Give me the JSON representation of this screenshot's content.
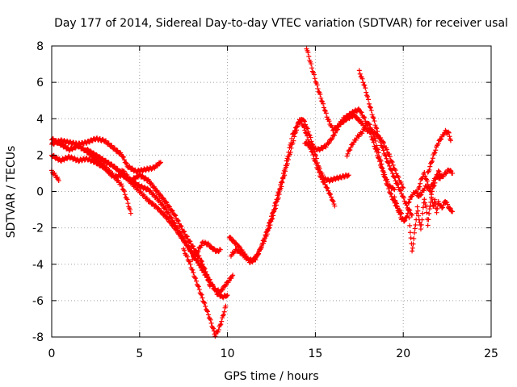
{
  "chart_data": {
    "type": "scatter",
    "title": "Day 177 of 2014, Sidereal Day-to-day VTEC variation (SDTVAR) for receiver usal",
    "xlabel": "GPS time / hours",
    "ylabel": "SDTVAR / TECUs",
    "xlim": [
      0,
      25
    ],
    "ylim": [
      -8,
      8
    ],
    "xticks": [
      "0",
      "5",
      "10",
      "15",
      "20",
      "25"
    ],
    "yticks": [
      "-8",
      "-6",
      "-4",
      "-2",
      "0",
      "2",
      "4",
      "6",
      "8"
    ],
    "grid": true,
    "marker": "+",
    "color": "#ff0000",
    "series": [
      {
        "name": "",
        "points": [
          [
            0.0,
            2.6
          ],
          [
            0.5,
            2.8
          ],
          [
            1.0,
            2.7
          ],
          [
            1.5,
            2.6
          ],
          [
            2.0,
            2.7
          ],
          [
            2.5,
            2.9
          ],
          [
            3.0,
            2.8
          ],
          [
            3.5,
            2.4
          ],
          [
            4.0,
            2.0
          ],
          [
            4.3,
            1.4
          ],
          [
            4.8,
            1.1
          ],
          [
            5.3,
            1.2
          ],
          [
            5.8,
            1.3
          ],
          [
            6.2,
            1.6
          ]
        ]
      },
      {
        "name": "",
        "points": [
          [
            0.0,
            2.9
          ],
          [
            0.5,
            2.6
          ],
          [
            1.0,
            2.3
          ],
          [
            1.5,
            2.5
          ],
          [
            2.0,
            2.2
          ],
          [
            2.5,
            1.8
          ],
          [
            3.0,
            1.4
          ],
          [
            3.5,
            0.9
          ],
          [
            4.0,
            0.3
          ],
          [
            4.3,
            -0.5
          ],
          [
            4.5,
            -1.2
          ]
        ]
      },
      {
        "name": "",
        "points": [
          [
            0.0,
            2.0
          ],
          [
            0.5,
            1.7
          ],
          [
            1.0,
            1.9
          ],
          [
            1.5,
            1.7
          ],
          [
            2.0,
            1.8
          ],
          [
            2.5,
            1.6
          ],
          [
            3.0,
            1.3
          ],
          [
            3.5,
            0.8
          ],
          [
            4.0,
            0.9
          ],
          [
            4.5,
            0.6
          ],
          [
            5.0,
            0.9
          ],
          [
            5.5,
            0.6
          ],
          [
            6.0,
            0.0
          ],
          [
            6.5,
            -0.6
          ],
          [
            7.0,
            -1.3
          ],
          [
            7.5,
            -2.2
          ],
          [
            8.0,
            -3.0
          ],
          [
            8.5,
            -3.8
          ],
          [
            8.8,
            -4.5
          ],
          [
            9.0,
            -5.2
          ]
        ]
      },
      {
        "name": "",
        "points": [
          [
            0.0,
            1.1
          ],
          [
            0.2,
            0.9
          ],
          [
            0.4,
            0.6
          ]
        ]
      },
      {
        "name": "",
        "points": [
          [
            2.0,
            2.3
          ],
          [
            2.5,
            2.0
          ],
          [
            3.0,
            1.7
          ],
          [
            3.5,
            1.4
          ],
          [
            4.0,
            1.0
          ],
          [
            4.5,
            0.5
          ],
          [
            5.0,
            0.0
          ],
          [
            5.5,
            -0.5
          ],
          [
            6.0,
            -0.9
          ],
          [
            6.5,
            -1.4
          ],
          [
            7.0,
            -2.0
          ],
          [
            7.5,
            -2.7
          ],
          [
            8.0,
            -3.4
          ],
          [
            8.5,
            -4.2
          ],
          [
            9.0,
            -5.0
          ],
          [
            9.3,
            -5.4
          ],
          [
            9.6,
            -5.5
          ],
          [
            10.0,
            -5.0
          ],
          [
            10.3,
            -4.6
          ]
        ]
      },
      {
        "name": "",
        "points": [
          [
            4.0,
            1.2
          ],
          [
            4.5,
            0.6
          ],
          [
            5.0,
            0.3
          ],
          [
            5.5,
            0.1
          ],
          [
            6.0,
            -0.4
          ],
          [
            6.5,
            -1.0
          ],
          [
            7.0,
            -1.8
          ],
          [
            7.5,
            -2.6
          ],
          [
            8.0,
            -3.4
          ],
          [
            8.5,
            -4.1
          ],
          [
            9.0,
            -4.9
          ],
          [
            9.4,
            -5.6
          ],
          [
            9.7,
            -5.8
          ],
          [
            10.0,
            -5.7
          ]
        ]
      },
      {
        "name": "",
        "points": [
          [
            7.5,
            -3.2
          ],
          [
            7.8,
            -3.8
          ],
          [
            8.1,
            -4.6
          ],
          [
            8.4,
            -5.4
          ],
          [
            8.7,
            -6.2
          ],
          [
            9.0,
            -7.0
          ],
          [
            9.2,
            -7.6
          ],
          [
            9.3,
            -7.9
          ],
          [
            9.5,
            -7.6
          ],
          [
            9.7,
            -7.0
          ],
          [
            9.9,
            -6.3
          ]
        ]
      },
      {
        "name": "",
        "points": [
          [
            8.0,
            -3.7
          ],
          [
            8.3,
            -3.3
          ],
          [
            8.6,
            -2.8
          ],
          [
            8.9,
            -2.9
          ],
          [
            9.1,
            -3.1
          ],
          [
            9.4,
            -3.3
          ],
          [
            9.6,
            -3.2
          ]
        ]
      },
      {
        "name": "",
        "points": [
          [
            10.2,
            -3.5
          ],
          [
            10.5,
            -3.2
          ],
          [
            10.8,
            -3.4
          ],
          [
            11.1,
            -3.7
          ],
          [
            11.4,
            -3.8
          ],
          [
            11.7,
            -3.5
          ],
          [
            12.0,
            -2.9
          ],
          [
            12.3,
            -2.2
          ],
          [
            12.6,
            -1.3
          ],
          [
            12.9,
            -0.3
          ],
          [
            13.2,
            0.8
          ],
          [
            13.5,
            1.9
          ],
          [
            13.8,
            3.0
          ],
          [
            14.1,
            4.0
          ],
          [
            14.4,
            3.4
          ],
          [
            14.7,
            2.5
          ],
          [
            15.0,
            1.6
          ],
          [
            15.3,
            0.8
          ],
          [
            15.6,
            0.3
          ],
          [
            15.9,
            -0.3
          ],
          [
            16.1,
            -0.8
          ]
        ]
      },
      {
        "name": "",
        "points": [
          [
            10.1,
            -2.5
          ],
          [
            10.4,
            -2.8
          ],
          [
            10.7,
            -3.1
          ],
          [
            11.0,
            -3.5
          ],
          [
            11.3,
            -3.9
          ],
          [
            11.6,
            -3.7
          ],
          [
            11.9,
            -3.1
          ],
          [
            12.2,
            -2.3
          ],
          [
            12.5,
            -1.4
          ],
          [
            12.8,
            -0.4
          ],
          [
            13.1,
            0.6
          ],
          [
            13.4,
            1.8
          ],
          [
            13.7,
            3.1
          ],
          [
            14.0,
            3.7
          ],
          [
            14.3,
            4.0
          ],
          [
            14.6,
            3.3
          ],
          [
            14.9,
            2.4
          ],
          [
            15.2,
            1.3
          ],
          [
            15.5,
            0.7
          ],
          [
            15.8,
            0.6
          ],
          [
            16.1,
            0.7
          ],
          [
            16.5,
            0.8
          ],
          [
            16.9,
            0.9
          ]
        ]
      },
      {
        "name": "",
        "points": [
          [
            14.5,
            7.9
          ],
          [
            14.8,
            6.8
          ],
          [
            15.1,
            5.8
          ],
          [
            15.4,
            4.9
          ],
          [
            15.7,
            4.0
          ],
          [
            16.0,
            3.4
          ],
          [
            16.3,
            3.6
          ],
          [
            16.6,
            4.0
          ],
          [
            16.9,
            4.2
          ],
          [
            17.2,
            4.4
          ],
          [
            17.5,
            4.5
          ],
          [
            17.8,
            4.0
          ],
          [
            18.1,
            3.3
          ],
          [
            18.4,
            2.4
          ],
          [
            18.7,
            1.5
          ],
          [
            19.0,
            0.6
          ],
          [
            19.3,
            -0.2
          ],
          [
            19.6,
            -0.8
          ],
          [
            19.9,
            -1.2
          ]
        ]
      },
      {
        "name": "",
        "points": [
          [
            17.5,
            6.6
          ],
          [
            17.8,
            5.8
          ],
          [
            18.1,
            4.7
          ],
          [
            18.4,
            3.7
          ],
          [
            18.7,
            2.7
          ],
          [
            19.0,
            1.9
          ],
          [
            19.3,
            1.2
          ],
          [
            19.6,
            0.5
          ],
          [
            19.9,
            -0.1
          ],
          [
            20.2,
            -0.8
          ],
          [
            20.5,
            -1.3
          ]
        ]
      },
      {
        "name": "",
        "points": [
          [
            14.4,
            2.7
          ],
          [
            14.8,
            2.4
          ],
          [
            15.2,
            2.3
          ],
          [
            15.6,
            2.5
          ],
          [
            16.0,
            3.0
          ],
          [
            16.4,
            3.7
          ],
          [
            16.8,
            4.0
          ],
          [
            17.2,
            4.2
          ],
          [
            17.6,
            3.8
          ],
          [
            18.0,
            3.3
          ],
          [
            18.4,
            3.2
          ],
          [
            18.8,
            2.8
          ],
          [
            19.2,
            2.0
          ],
          [
            19.6,
            1.0
          ],
          [
            20.0,
            0.2
          ]
        ]
      },
      {
        "name": "",
        "points": [
          [
            16.8,
            2.0
          ],
          [
            17.1,
            2.6
          ],
          [
            17.4,
            3.0
          ],
          [
            17.7,
            3.3
          ],
          [
            18.0,
            3.8
          ],
          [
            18.3,
            3.2
          ],
          [
            18.6,
            2.1
          ],
          [
            18.9,
            1.0
          ],
          [
            19.2,
            0.3
          ],
          [
            19.5,
            0.1
          ]
        ]
      },
      {
        "name": "",
        "points": [
          [
            19.5,
            -0.3
          ],
          [
            19.7,
            -1.0
          ],
          [
            19.9,
            -1.5
          ],
          [
            20.1,
            -1.6
          ],
          [
            20.3,
            -1.1
          ],
          [
            20.4,
            -2.2
          ],
          [
            20.5,
            -3.3
          ],
          [
            20.6,
            -2.6
          ],
          [
            20.7,
            -1.8
          ],
          [
            20.8,
            -0.9
          ],
          [
            20.9,
            -1.5
          ],
          [
            21.0,
            -2.1
          ],
          [
            21.1,
            -1.2
          ],
          [
            21.2,
            -0.4
          ],
          [
            21.3,
            -0.9
          ],
          [
            21.4,
            -1.8
          ],
          [
            21.5,
            -1.0
          ],
          [
            21.6,
            -0.3
          ],
          [
            21.7,
            -0.8
          ],
          [
            21.8,
            -0.5
          ],
          [
            21.9,
            -1.1
          ],
          [
            22.0,
            -0.6
          ],
          [
            22.2,
            -0.9
          ],
          [
            22.4,
            -0.5
          ],
          [
            22.6,
            -0.9
          ],
          [
            22.8,
            -1.1
          ]
        ]
      },
      {
        "name": "",
        "points": [
          [
            20.8,
            -0.1
          ],
          [
            21.0,
            0.6
          ],
          [
            21.2,
            1.0
          ],
          [
            21.4,
            0.4
          ],
          [
            21.6,
            -0.1
          ],
          [
            21.8,
            0.5
          ],
          [
            22.0,
            1.1
          ],
          [
            22.2,
            0.8
          ],
          [
            22.4,
            1.0
          ],
          [
            22.6,
            1.2
          ],
          [
            22.8,
            1.0
          ]
        ]
      },
      {
        "name": "",
        "points": [
          [
            21.4,
            1.0
          ],
          [
            21.6,
            1.6
          ],
          [
            21.8,
            2.2
          ],
          [
            22.0,
            2.7
          ],
          [
            22.2,
            3.0
          ],
          [
            22.4,
            3.3
          ],
          [
            22.6,
            3.2
          ],
          [
            22.7,
            2.8
          ]
        ]
      },
      {
        "name": "",
        "points": [
          [
            20.3,
            -0.6
          ],
          [
            20.5,
            -0.2
          ],
          [
            20.7,
            0.0
          ],
          [
            20.9,
            -0.3
          ],
          [
            21.1,
            0.0
          ],
          [
            21.3,
            0.3
          ],
          [
            21.5,
            0.1
          ],
          [
            21.7,
            0.5
          ],
          [
            21.9,
            0.9
          ],
          [
            22.1,
            0.7
          ]
        ]
      }
    ]
  }
}
